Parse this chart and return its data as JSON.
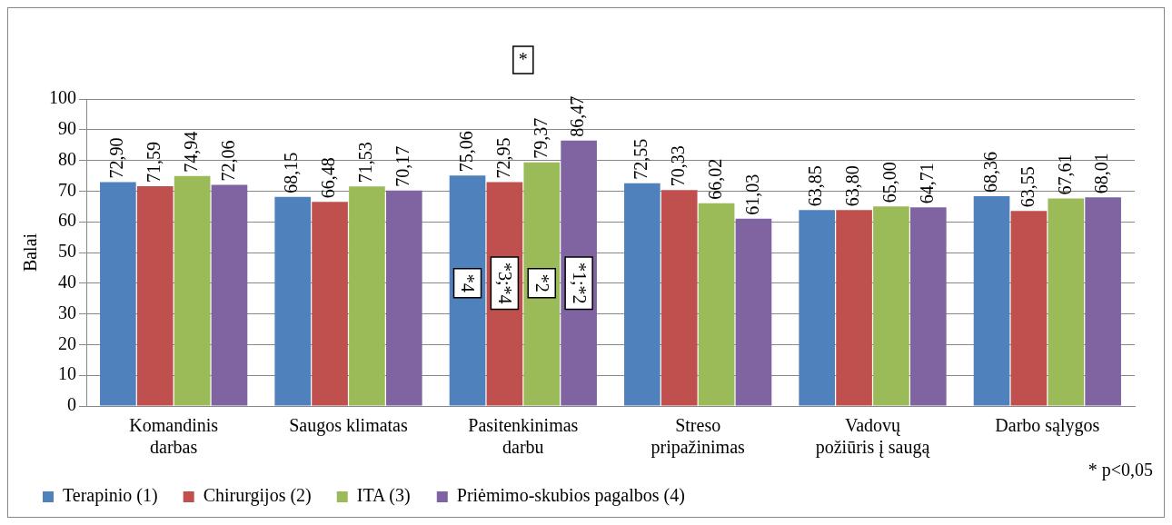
{
  "chart_data": {
    "type": "bar",
    "ylabel": "Balai",
    "categories": [
      "Komandinis\ndarbas",
      "Saugos klimatas",
      "Pasitenkinimas\ndarbu",
      "Streso\npripažinimas",
      "Vadovų\npožiūris į saugą",
      "Darbo sąlygos"
    ],
    "series": [
      {
        "name": "Terapinio (1)",
        "color": "#4f81bd",
        "values": [
          72.9,
          68.15,
          75.06,
          72.55,
          63.85,
          68.36
        ],
        "value_labels": [
          "72,90",
          "68,15",
          "75,06",
          "72,55",
          "63,85",
          "68,36"
        ]
      },
      {
        "name": "Chirurgijos (2)",
        "color": "#c0504d",
        "values": [
          71.59,
          66.48,
          72.95,
          70.33,
          63.8,
          63.55
        ],
        "value_labels": [
          "71,59",
          "66,48",
          "72,95",
          "70,33",
          "63,80",
          "63,55"
        ]
      },
      {
        "name": "ITA (3)",
        "color": "#9bbb59",
        "values": [
          74.94,
          71.53,
          79.37,
          66.02,
          65.0,
          67.61
        ],
        "value_labels": [
          "74,94",
          "71,53",
          "79,37",
          "66,02",
          "65,00",
          "67,61"
        ]
      },
      {
        "name": "Priėmimo-skubios pagalbos (4)",
        "color": "#8064a2",
        "values": [
          72.06,
          70.17,
          86.47,
          61.03,
          64.71,
          68.01
        ],
        "value_labels": [
          "72,06",
          "70,17",
          "86,47",
          "61,03",
          "64,71",
          "68,01"
        ]
      }
    ],
    "ylim": [
      0,
      100
    ],
    "yticks": [
      0,
      10,
      20,
      30,
      40,
      50,
      60,
      70,
      80,
      90,
      100
    ],
    "grid": "y",
    "legend": "bottom",
    "annotations": [
      "*",
      "*4",
      "*3;*4",
      "*2",
      "*1;*2",
      "* p<0,05"
    ]
  }
}
